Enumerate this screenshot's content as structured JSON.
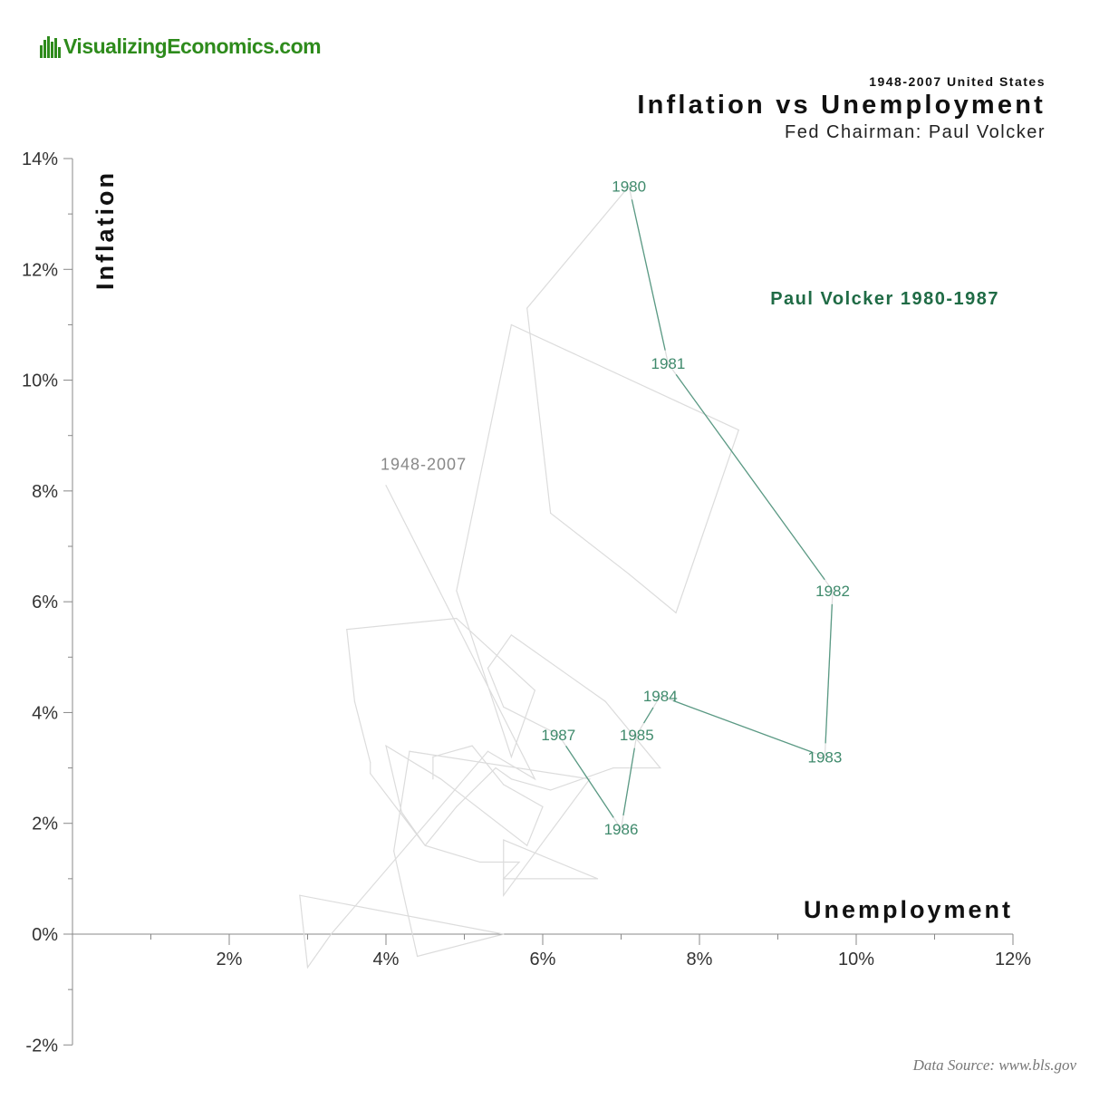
{
  "logo": {
    "text": "VisualizingEconomics.com"
  },
  "header": {
    "top_line": "1948-2007 United States",
    "title": "Inflation vs Unemployment",
    "subtitle": "Fed Chairman: Paul Volcker"
  },
  "source": "Data Source: www.bls.gov",
  "colors": {
    "background": "#888888",
    "highlight": "#5a9a84",
    "highlight_label": "#1f6b45",
    "logo": "#2e8b1c"
  },
  "chart_data": {
    "type": "line",
    "xlabel": "Unemployment",
    "ylabel": "Inflation",
    "xlim": [
      0,
      12
    ],
    "ylim": [
      -2,
      14
    ],
    "x_ticks": [
      {
        "value": 2,
        "label": "2%"
      },
      {
        "value": 4,
        "label": "4%"
      },
      {
        "value": 6,
        "label": "6%"
      },
      {
        "value": 8,
        "label": "8%"
      },
      {
        "value": 10,
        "label": "10%"
      },
      {
        "value": 12,
        "label": "12%"
      }
    ],
    "y_ticks": [
      {
        "value": -2,
        "label": "-2%"
      },
      {
        "value": 0,
        "label": "0%"
      },
      {
        "value": 2,
        "label": "2%"
      },
      {
        "value": 4,
        "label": "4%"
      },
      {
        "value": 6,
        "label": "6%"
      },
      {
        "value": 8,
        "label": "8%"
      },
      {
        "value": 10,
        "label": "10%"
      },
      {
        "value": 12,
        "label": "12%"
      },
      {
        "value": 14,
        "label": "14%"
      }
    ],
    "grid": false,
    "series": [
      {
        "name": "1948-2007",
        "points": [
          [
            4.0,
            8.1
          ],
          [
            5.9,
            2.8
          ],
          [
            5.3,
            3.3
          ],
          [
            3.3,
            0.0
          ],
          [
            3.0,
            -0.6
          ],
          [
            2.9,
            0.7
          ],
          [
            5.5,
            0.0
          ],
          [
            4.4,
            -0.4
          ],
          [
            4.1,
            1.5
          ],
          [
            4.3,
            3.3
          ],
          [
            6.6,
            2.8
          ],
          [
            5.5,
            0.7
          ],
          [
            5.5,
            1.7
          ],
          [
            6.7,
            1.0
          ],
          [
            5.5,
            1.0
          ],
          [
            5.7,
            1.3
          ],
          [
            5.2,
            1.3
          ],
          [
            4.5,
            1.6
          ],
          [
            3.8,
            2.9
          ],
          [
            3.8,
            3.1
          ],
          [
            3.6,
            4.2
          ],
          [
            3.5,
            5.5
          ],
          [
            4.9,
            5.7
          ],
          [
            5.9,
            4.4
          ],
          [
            5.6,
            3.2
          ],
          [
            4.9,
            6.2
          ],
          [
            5.6,
            11.0
          ],
          [
            8.5,
            9.1
          ],
          [
            7.7,
            5.8
          ],
          [
            7.1,
            6.5
          ],
          [
            6.1,
            7.6
          ],
          [
            5.8,
            11.3
          ],
          [
            7.1,
            13.5
          ],
          [
            7.6,
            10.3
          ],
          [
            9.7,
            6.2
          ],
          [
            9.6,
            3.2
          ],
          [
            7.5,
            4.3
          ],
          [
            7.2,
            3.6
          ],
          [
            7.0,
            1.9
          ],
          [
            6.2,
            3.6
          ],
          [
            5.5,
            4.1
          ],
          [
            5.3,
            4.8
          ],
          [
            5.6,
            5.4
          ],
          [
            6.8,
            4.2
          ],
          [
            7.5,
            3.0
          ],
          [
            6.9,
            3.0
          ],
          [
            6.1,
            2.6
          ],
          [
            5.6,
            2.8
          ],
          [
            5.4,
            3.0
          ],
          [
            4.9,
            2.3
          ],
          [
            4.5,
            1.6
          ],
          [
            4.2,
            2.2
          ],
          [
            4.0,
            3.4
          ],
          [
            4.7,
            2.8
          ],
          [
            5.8,
            1.6
          ],
          [
            6.0,
            2.3
          ],
          [
            5.5,
            2.7
          ],
          [
            5.1,
            3.4
          ],
          [
            4.6,
            3.2
          ],
          [
            4.6,
            2.8
          ]
        ]
      },
      {
        "name": "Paul Volcker 1980-1987",
        "points": [
          {
            "year": "1980",
            "x": 7.1,
            "y": 13.5
          },
          {
            "year": "1981",
            "x": 7.6,
            "y": 10.3
          },
          {
            "year": "1982",
            "x": 9.7,
            "y": 6.2
          },
          {
            "year": "1983",
            "x": 9.6,
            "y": 3.2
          },
          {
            "year": "1984",
            "x": 7.5,
            "y": 4.3
          },
          {
            "year": "1985",
            "x": 7.2,
            "y": 3.6
          },
          {
            "year": "1986",
            "x": 7.0,
            "y": 1.9
          },
          {
            "year": "1987",
            "x": 6.2,
            "y": 3.6
          }
        ]
      }
    ]
  }
}
